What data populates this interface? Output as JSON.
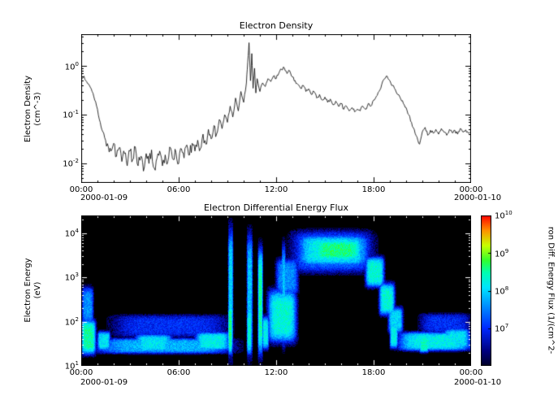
{
  "chart_data": [
    {
      "id": "density",
      "type": "line",
      "title": "Electron Density",
      "ylabel_line1": "Electron Density",
      "ylabel_line2": "(cm^-3)",
      "xlim_hours": [
        0,
        24
      ],
      "ylim": [
        0.004,
        4.5
      ],
      "y_ticks_exp": [
        -2,
        -1,
        0
      ],
      "x_ticks": [
        {
          "hour": 0,
          "label": "00:00"
        },
        {
          "hour": 6,
          "label": "06:00"
        },
        {
          "hour": 12,
          "label": "12:00"
        },
        {
          "hour": 18,
          "label": "18:00"
        },
        {
          "hour": 24,
          "label": "00:00"
        }
      ],
      "x_date_left": "2000-01-09",
      "x_date_right": "2000-01-10",
      "line_color": "#000000",
      "points": [
        [
          0.0,
          0.55
        ],
        [
          0.17,
          0.62
        ],
        [
          0.33,
          0.48
        ],
        [
          0.5,
          0.4
        ],
        [
          0.67,
          0.3
        ],
        [
          0.83,
          0.2
        ],
        [
          1.0,
          0.13
        ],
        [
          1.17,
          0.07
        ],
        [
          1.33,
          0.045
        ],
        [
          1.5,
          0.03
        ],
        [
          1.67,
          0.022
        ],
        [
          1.83,
          0.018
        ],
        [
          2.0,
          0.026
        ],
        [
          2.17,
          0.014
        ],
        [
          2.33,
          0.021
        ],
        [
          2.5,
          0.011
        ],
        [
          2.67,
          0.016
        ],
        [
          2.83,
          0.009
        ],
        [
          3.0,
          0.018
        ],
        [
          3.17,
          0.012
        ],
        [
          3.33,
          0.022
        ],
        [
          3.5,
          0.009
        ],
        [
          3.67,
          0.014
        ],
        [
          3.83,
          0.007
        ],
        [
          4.0,
          0.016
        ],
        [
          4.17,
          0.01
        ],
        [
          4.33,
          0.019
        ],
        [
          4.5,
          0.008
        ],
        [
          4.67,
          0.013
        ],
        [
          4.83,
          0.018
        ],
        [
          5.0,
          0.009
        ],
        [
          5.17,
          0.015
        ],
        [
          5.33,
          0.011
        ],
        [
          5.5,
          0.021
        ],
        [
          5.67,
          0.012
        ],
        [
          5.83,
          0.017
        ],
        [
          6.0,
          0.01
        ],
        [
          6.17,
          0.02
        ],
        [
          6.33,
          0.013
        ],
        [
          6.5,
          0.024
        ],
        [
          6.67,
          0.015
        ],
        [
          6.83,
          0.026
        ],
        [
          7.0,
          0.018
        ],
        [
          7.17,
          0.03
        ],
        [
          7.33,
          0.02
        ],
        [
          7.5,
          0.04
        ],
        [
          7.67,
          0.025
        ],
        [
          7.83,
          0.05
        ],
        [
          8.0,
          0.032
        ],
        [
          8.17,
          0.06
        ],
        [
          8.33,
          0.04
        ],
        [
          8.5,
          0.08
        ],
        [
          8.67,
          0.052
        ],
        [
          8.83,
          0.1
        ],
        [
          9.0,
          0.07
        ],
        [
          9.17,
          0.15
        ],
        [
          9.33,
          0.09
        ],
        [
          9.5,
          0.22
        ],
        [
          9.67,
          0.12
        ],
        [
          9.83,
          0.3
        ],
        [
          10.0,
          0.18
        ],
        [
          10.17,
          0.45
        ],
        [
          10.25,
          1.2
        ],
        [
          10.33,
          3.0
        ],
        [
          10.42,
          0.5
        ],
        [
          10.5,
          1.8
        ],
        [
          10.58,
          0.35
        ],
        [
          10.67,
          0.9
        ],
        [
          10.75,
          0.28
        ],
        [
          10.83,
          0.55
        ],
        [
          11.0,
          0.3
        ],
        [
          11.17,
          0.45
        ],
        [
          11.33,
          0.38
        ],
        [
          11.5,
          0.55
        ],
        [
          11.67,
          0.48
        ],
        [
          11.83,
          0.62
        ],
        [
          12.0,
          0.55
        ],
        [
          12.17,
          0.72
        ],
        [
          12.33,
          0.85
        ],
        [
          12.5,
          0.92
        ],
        [
          12.67,
          0.7
        ],
        [
          12.83,
          0.8
        ],
        [
          13.0,
          0.6
        ],
        [
          13.17,
          0.5
        ],
        [
          13.33,
          0.42
        ],
        [
          13.5,
          0.35
        ],
        [
          13.67,
          0.4
        ],
        [
          13.83,
          0.3
        ],
        [
          14.0,
          0.34
        ],
        [
          14.17,
          0.26
        ],
        [
          14.33,
          0.3
        ],
        [
          14.5,
          0.22
        ],
        [
          14.67,
          0.26
        ],
        [
          14.83,
          0.2
        ],
        [
          15.0,
          0.23
        ],
        [
          15.17,
          0.18
        ],
        [
          15.33,
          0.21
        ],
        [
          15.5,
          0.16
        ],
        [
          15.67,
          0.19
        ],
        [
          15.83,
          0.15
        ],
        [
          16.0,
          0.17
        ],
        [
          16.17,
          0.13
        ],
        [
          16.33,
          0.15
        ],
        [
          16.5,
          0.12
        ],
        [
          16.67,
          0.14
        ],
        [
          16.83,
          0.115
        ],
        [
          17.0,
          0.13
        ],
        [
          17.17,
          0.12
        ],
        [
          17.33,
          0.15
        ],
        [
          17.5,
          0.13
        ],
        [
          17.67,
          0.17
        ],
        [
          17.83,
          0.15
        ],
        [
          18.0,
          0.2
        ],
        [
          18.17,
          0.24
        ],
        [
          18.33,
          0.3
        ],
        [
          18.5,
          0.42
        ],
        [
          18.67,
          0.55
        ],
        [
          18.83,
          0.62
        ],
        [
          19.0,
          0.5
        ],
        [
          19.17,
          0.4
        ],
        [
          19.33,
          0.33
        ],
        [
          19.5,
          0.26
        ],
        [
          19.67,
          0.21
        ],
        [
          19.83,
          0.17
        ],
        [
          20.0,
          0.14
        ],
        [
          20.17,
          0.1
        ],
        [
          20.33,
          0.07
        ],
        [
          20.5,
          0.05
        ],
        [
          20.67,
          0.035
        ],
        [
          20.83,
          0.025
        ],
        [
          21.0,
          0.045
        ],
        [
          21.17,
          0.055
        ],
        [
          21.33,
          0.038
        ],
        [
          21.5,
          0.048
        ],
        [
          21.67,
          0.042
        ],
        [
          21.83,
          0.05
        ],
        [
          22.0,
          0.04
        ],
        [
          22.17,
          0.052
        ],
        [
          22.33,
          0.044
        ],
        [
          22.5,
          0.038
        ],
        [
          22.67,
          0.05
        ],
        [
          22.83,
          0.043
        ],
        [
          23.0,
          0.048
        ],
        [
          23.17,
          0.04
        ],
        [
          23.33,
          0.052
        ],
        [
          23.5,
          0.044
        ],
        [
          23.67,
          0.049
        ],
        [
          23.83,
          0.042
        ],
        [
          24.0,
          0.046
        ]
      ]
    },
    {
      "id": "spectrogram",
      "type": "heatmap",
      "title": "Electron Differential Energy Flux",
      "ylabel_line1": "Electron Energy",
      "ylabel_line2": "(eV)",
      "xlim_hours": [
        0,
        24
      ],
      "ylim_ev": [
        10,
        25000
      ],
      "y_ticks_exp": [
        1,
        2,
        3,
        4
      ],
      "x_ticks": [
        {
          "hour": 0,
          "label": "00:00"
        },
        {
          "hour": 6,
          "label": "06:00"
        },
        {
          "hour": 12,
          "label": "12:00"
        },
        {
          "hour": 18,
          "label": "18:00"
        },
        {
          "hour": 24,
          "label": "00:00"
        }
      ],
      "x_date_left": "2000-01-09",
      "x_date_right": "2000-01-10",
      "background": "#000000",
      "colorbar": {
        "label": "ron Diff. Energy Flux (1/(cm^2-",
        "ticks_exp": [
          7,
          8,
          9,
          10
        ],
        "range_exp": [
          6,
          10
        ],
        "stops": [
          {
            "p": 0.0,
            "c": "#000028"
          },
          {
            "p": 0.1,
            "c": "#000080"
          },
          {
            "p": 0.25,
            "c": "#0028FF"
          },
          {
            "p": 0.4,
            "c": "#0090FF"
          },
          {
            "p": 0.52,
            "c": "#00E5FF"
          },
          {
            "p": 0.62,
            "c": "#00FFB0"
          },
          {
            "p": 0.7,
            "c": "#30FF30"
          },
          {
            "p": 0.8,
            "c": "#C8FF00"
          },
          {
            "p": 0.9,
            "c": "#FF9000"
          },
          {
            "p": 1.0,
            "c": "#FF0000"
          }
        ]
      },
      "features": [
        {
          "t": [
            0.0,
            0.9
          ],
          "e": [
            18,
            110
          ],
          "v": 8.5
        },
        {
          "t": [
            0.05,
            0.75
          ],
          "e": [
            90,
            600
          ],
          "v": 7.6
        },
        {
          "t": [
            0.9,
            9.25
          ],
          "e": [
            19,
            42
          ],
          "v": 7.8
        },
        {
          "t": [
            1.0,
            1.8
          ],
          "e": [
            22,
            60
          ],
          "v": 8.1
        },
        {
          "t": [
            3.3,
            5.6
          ],
          "e": [
            20,
            52
          ],
          "v": 8.1
        },
        {
          "t": [
            7.0,
            9.15
          ],
          "e": [
            22,
            58
          ],
          "v": 8.2
        },
        {
          "t": [
            2.0,
            9.0
          ],
          "e": [
            45,
            140
          ],
          "v": 7.0
        },
        {
          "t": [
            9.05,
            9.35
          ],
          "e": [
            18,
            12000
          ],
          "v": 8.0
        },
        {
          "t": [
            9.05,
            9.3
          ],
          "e": [
            18,
            260
          ],
          "v": 8.6
        },
        {
          "t": [
            10.2,
            10.55
          ],
          "e": [
            18,
            9000
          ],
          "v": 7.9
        },
        {
          "t": [
            10.2,
            10.5
          ],
          "e": [
            18,
            200
          ],
          "v": 8.3
        },
        {
          "t": [
            10.88,
            11.18
          ],
          "e": [
            18,
            4500
          ],
          "v": 8.5
        },
        {
          "t": [
            11.15,
            11.55
          ],
          "e": [
            24,
            130
          ],
          "v": 8.2
        },
        {
          "t": [
            11.5,
            13.25
          ],
          "e": [
            34,
            520
          ],
          "v": 8.3
        },
        {
          "t": [
            12.0,
            13.35
          ],
          "e": [
            400,
            2600
          ],
          "v": 7.6
        },
        {
          "t": [
            12.35,
            12.58
          ],
          "e": [
            30,
            5200
          ],
          "v": 7.9
        },
        {
          "t": [
            13.0,
            17.9
          ],
          "e": [
            1300,
            11000
          ],
          "v": 7.4
        },
        {
          "t": [
            13.3,
            17.7
          ],
          "e": [
            1800,
            9000
          ],
          "v": 8.2
        },
        {
          "t": [
            14.2,
            17.4
          ],
          "e": [
            2400,
            7200
          ],
          "v": 8.6
        },
        {
          "t": [
            17.5,
            18.65
          ],
          "e": [
            600,
            2900
          ],
          "v": 8.3
        },
        {
          "t": [
            18.35,
            19.3
          ],
          "e": [
            140,
            740
          ],
          "v": 8.3
        },
        {
          "t": [
            18.9,
            19.8
          ],
          "e": [
            55,
            210
          ],
          "v": 8.0
        },
        {
          "t": [
            19.0,
            19.5
          ],
          "e": [
            25,
            95
          ],
          "v": 8.2
        },
        {
          "t": [
            19.5,
            24.0
          ],
          "e": [
            22,
            58
          ],
          "v": 8.2
        },
        {
          "t": [
            20.8,
            21.4
          ],
          "e": [
            20,
            46
          ],
          "v": 8.4
        },
        {
          "t": [
            22.3,
            23.9
          ],
          "e": [
            24,
            70
          ],
          "v": 8.1
        },
        {
          "t": [
            20.9,
            23.9
          ],
          "e": [
            55,
            150
          ],
          "v": 7.0
        }
      ]
    }
  ]
}
